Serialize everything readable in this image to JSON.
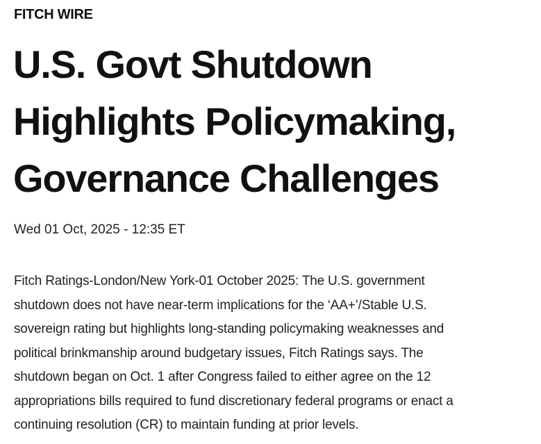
{
  "kicker": "FITCH WIRE",
  "title_lines": [
    "U.S. Govt Shutdown",
    "Highlights Policymaking,",
    "Governance Challenges"
  ],
  "date": "Wed 01 Oct, 2025 - 12:35 ET",
  "body_lines": [
    "Fitch Ratings-London/New York-01 October 2025: The U.S. government",
    "shutdown does not have near-term implications for the ‘AA+’/Stable U.S.",
    "sovereign rating but highlights long-standing policymaking weaknesses and",
    "political brinkmanship around budgetary issues, Fitch Ratings says. The",
    "shutdown began on Oct. 1 after Congress failed to either agree on the 12",
    "appropriations bills required to fund discretionary federal programs or enact a",
    "continuing resolution (CR) to maintain funding at prior levels."
  ]
}
